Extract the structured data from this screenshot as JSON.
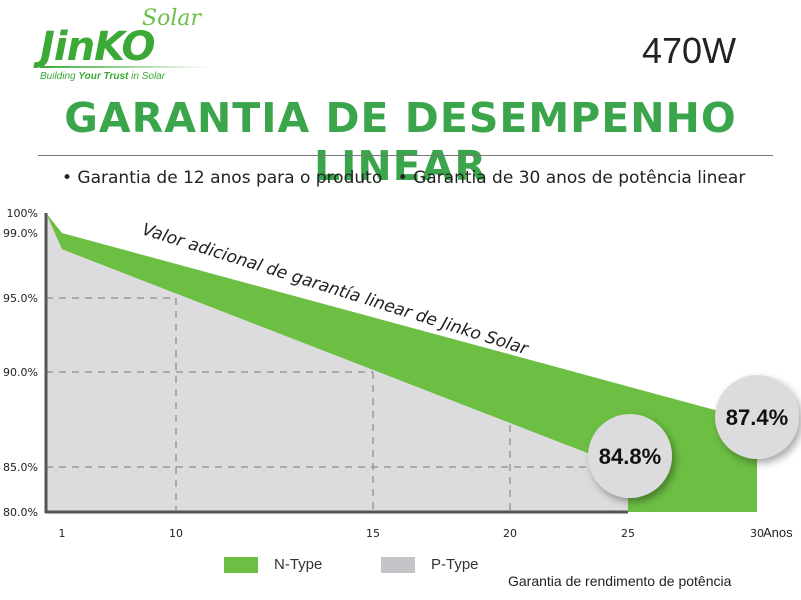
{
  "logo": {
    "brand": "JinKO",
    "sub": "Solar",
    "tagline_pre": "Building ",
    "tagline_bold": "Your Trust",
    "tagline_post": " in Solar"
  },
  "power": "470W",
  "title": "GARANTIA DE DESEMPENHO LINEAR",
  "bullets": [
    "• Garantia de 12 anos para o produto",
    "• Garantia de 30 anos de potência linear"
  ],
  "footer": "Garantia de rendimento de potência",
  "colors": {
    "n_type": "#6cbf43",
    "p_type": "#dcdcde",
    "title": "#3aa54a"
  },
  "chart_data": {
    "type": "area",
    "annotation": "Valor adicional de garantía linear de Jinko Solar",
    "x_unit": "Anos",
    "x_ticks": [
      "1",
      "10",
      "15",
      "20",
      "25",
      "30"
    ],
    "y_ticks": [
      "100%",
      "99.0%",
      "95.0%",
      "90.0%",
      "85.0%",
      "80.0%"
    ],
    "ylim": [
      80,
      100
    ],
    "xlim": [
      0,
      30
    ],
    "grid": "dashed at 95%, 90%, 85% and years 10, 15, 20",
    "legend_position": "bottom",
    "series": [
      {
        "name": "N-Type",
        "x": [
          0,
          1,
          30
        ],
        "y": [
          100,
          99.0,
          87.4
        ],
        "end_label": "87.4%"
      },
      {
        "name": "P-Type",
        "x": [
          0,
          1,
          25
        ],
        "y": [
          100,
          98.0,
          84.8
        ],
        "end_label": "84.8%"
      }
    ]
  }
}
